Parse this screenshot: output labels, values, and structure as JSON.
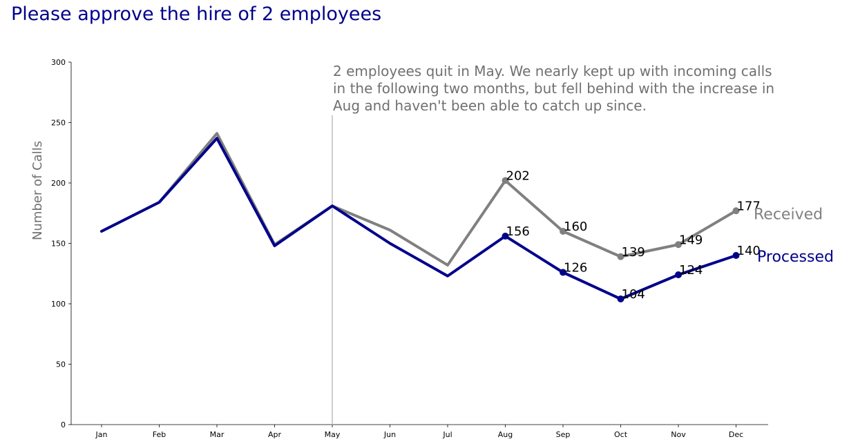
{
  "chart_data": {
    "type": "line",
    "title": "Please approve the hire of 2 employees",
    "ylabel": "Number of Calls",
    "xlabel": "",
    "categories": [
      "Jan",
      "Feb",
      "Mar",
      "Apr",
      "May",
      "Jun",
      "Jul",
      "Aug",
      "Sep",
      "Oct",
      "Nov",
      "Dec"
    ],
    "ylim": [
      0,
      300
    ],
    "yticks": [
      0,
      50,
      100,
      150,
      200,
      250,
      300
    ],
    "grid": false,
    "legend": "direct labels at right end of lines",
    "annotation": {
      "lines": [
        "2 employees quit in May. We nearly kept up with incoming calls",
        "in the following two months, but fell behind with the increase in",
        "Aug and haven't been able to catch up since."
      ],
      "marker_category": "May"
    },
    "series": [
      {
        "name": "Received",
        "color": "#808080",
        "values": [
          160,
          184,
          241,
          149,
          181,
          161,
          132,
          202,
          160,
          139,
          149,
          177
        ],
        "labeled_from": "Aug"
      },
      {
        "name": "Processed",
        "color": "#00008b",
        "values": [
          160,
          184,
          237,
          148,
          181,
          150,
          123,
          156,
          126,
          104,
          124,
          140
        ],
        "labeled_from": "Aug"
      }
    ]
  }
}
